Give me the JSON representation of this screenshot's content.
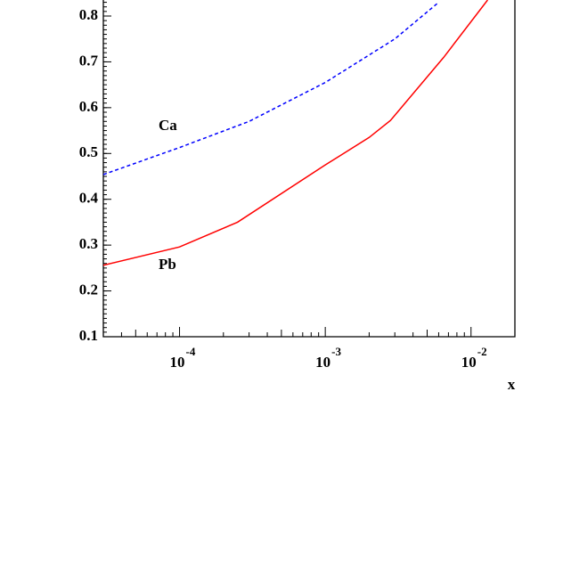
{
  "chart_data": {
    "type": "line",
    "x_label": "x",
    "xscale": "log",
    "xlim": [
      3e-05,
      0.02
    ],
    "xticks": [
      {
        "value": 0.0001,
        "label": "10",
        "exponent": "-4"
      },
      {
        "value": 0.001,
        "label": "10",
        "exponent": "-3"
      },
      {
        "value": 0.01,
        "label": "10",
        "exponent": "-2"
      }
    ],
    "ylim": [
      0.1,
      0.835
    ],
    "yticks": [
      0.1,
      0.2,
      0.3,
      0.4,
      0.5,
      0.6,
      0.7,
      0.8
    ],
    "series": [
      {
        "name": "Ca",
        "color": "#0000ff",
        "dash": true,
        "x": [
          3e-05,
          0.0001,
          0.0003,
          0.001,
          0.003,
          0.006
        ],
        "values": [
          0.454,
          0.513,
          0.57,
          0.655,
          0.75,
          0.83
        ]
      },
      {
        "name": "Pb",
        "color": "#ff0000",
        "dash": false,
        "x": [
          3e-05,
          0.0001,
          0.00025,
          0.001,
          0.002,
          0.0028,
          0.0065,
          0.013
        ],
        "values": [
          0.256,
          0.296,
          0.35,
          0.475,
          0.535,
          0.572,
          0.71,
          0.835
        ]
      }
    ]
  }
}
